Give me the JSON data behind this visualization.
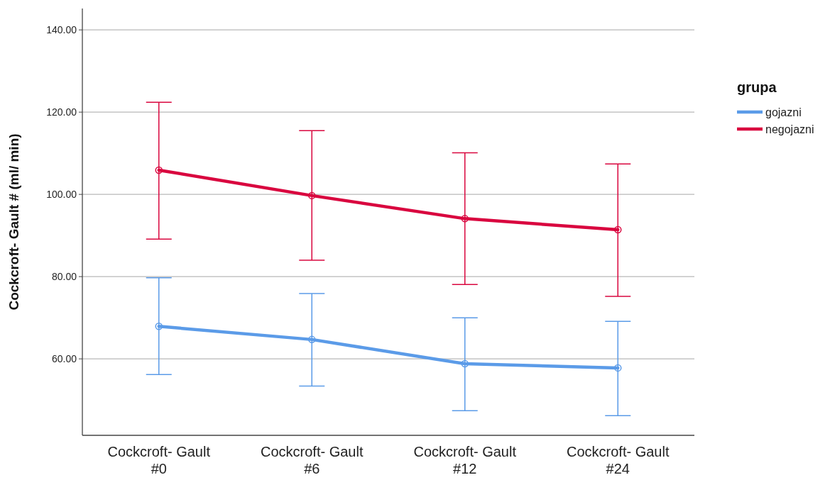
{
  "chart_data": {
    "type": "line",
    "ylabel": "Cockcroft- Gault # (ml/ min)",
    "legend_title": "grupa",
    "categories": [
      "Cockcroft- Gault #0",
      "Cockcroft- Gault #6",
      "Cockcroft- Gault #12",
      "Cockcroft- Gault #24"
    ],
    "series": [
      {
        "name": "gojazni",
        "color": "#5b9be8",
        "values": [
          67.9,
          64.7,
          58.8,
          57.8
        ],
        "errors": [
          [
            56.2,
            79.7
          ],
          [
            53.4,
            75.9
          ],
          [
            47.4,
            70.0
          ],
          [
            46.2,
            69.1
          ]
        ]
      },
      {
        "name": "negojazni",
        "color": "#d9073f",
        "values": [
          105.9,
          99.7,
          94.1,
          91.4
        ],
        "errors": [
          [
            89.1,
            122.4
          ],
          [
            84.0,
            115.5
          ],
          [
            78.1,
            110.1
          ],
          [
            75.2,
            107.4
          ]
        ]
      }
    ],
    "ylim": [
      41.4,
      145.2
    ],
    "yticks": [
      {
        "value": 60,
        "label": "60.00"
      },
      {
        "value": 80,
        "label": "80.00"
      },
      {
        "value": 100,
        "label": "100.00"
      },
      {
        "value": 120,
        "label": "120.00"
      },
      {
        "value": 140,
        "label": "140.00"
      }
    ],
    "grid": "y",
    "legend": "right",
    "marker": "circle",
    "line_style": "solid"
  }
}
